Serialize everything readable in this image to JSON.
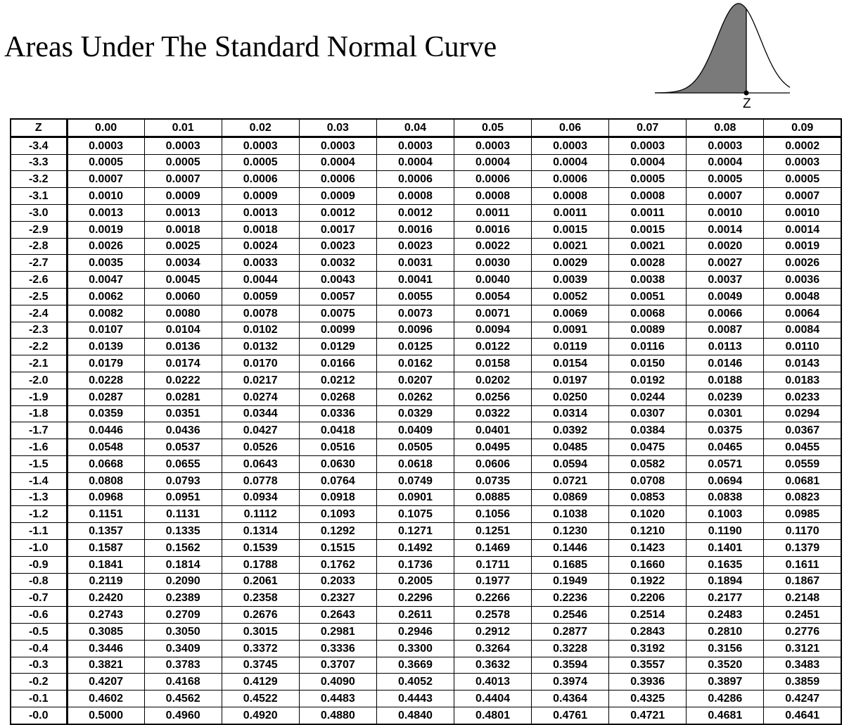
{
  "title": "Areas Under The Standard Normal Curve",
  "figure": {
    "z_label": "Z",
    "shade_color": "#7a7a7a"
  },
  "table": {
    "headers": [
      "Z",
      "0.00",
      "0.01",
      "0.02",
      "0.03",
      "0.04",
      "0.05",
      "0.06",
      "0.07",
      "0.08",
      "0.09"
    ],
    "rows": [
      [
        "-3.4",
        "0.0003",
        "0.0003",
        "0.0003",
        "0.0003",
        "0.0003",
        "0.0003",
        "0.0003",
        "0.0003",
        "0.0003",
        "0.0002"
      ],
      [
        "-3.3",
        "0.0005",
        "0.0005",
        "0.0005",
        "0.0004",
        "0.0004",
        "0.0004",
        "0.0004",
        "0.0004",
        "0.0004",
        "0.0003"
      ],
      [
        "-3.2",
        "0.0007",
        "0.0007",
        "0.0006",
        "0.0006",
        "0.0006",
        "0.0006",
        "0.0006",
        "0.0005",
        "0.0005",
        "0.0005"
      ],
      [
        "-3.1",
        "0.0010",
        "0.0009",
        "0.0009",
        "0.0009",
        "0.0008",
        "0.0008",
        "0.0008",
        "0.0008",
        "0.0007",
        "0.0007"
      ],
      [
        "-3.0",
        "0.0013",
        "0.0013",
        "0.0013",
        "0.0012",
        "0.0012",
        "0.0011",
        "0.0011",
        "0.0011",
        "0.0010",
        "0.0010"
      ],
      [
        "-2.9",
        "0.0019",
        "0.0018",
        "0.0018",
        "0.0017",
        "0.0016",
        "0.0016",
        "0.0015",
        "0.0015",
        "0.0014",
        "0.0014"
      ],
      [
        "-2.8",
        "0.0026",
        "0.0025",
        "0.0024",
        "0.0023",
        "0.0023",
        "0.0022",
        "0.0021",
        "0.0021",
        "0.0020",
        "0.0019"
      ],
      [
        "-2.7",
        "0.0035",
        "0.0034",
        "0.0033",
        "0.0032",
        "0.0031",
        "0.0030",
        "0.0029",
        "0.0028",
        "0.0027",
        "0.0026"
      ],
      [
        "-2.6",
        "0.0047",
        "0.0045",
        "0.0044",
        "0.0043",
        "0.0041",
        "0.0040",
        "0.0039",
        "0.0038",
        "0.0037",
        "0.0036"
      ],
      [
        "-2.5",
        "0.0062",
        "0.0060",
        "0.0059",
        "0.0057",
        "0.0055",
        "0.0054",
        "0.0052",
        "0.0051",
        "0.0049",
        "0.0048"
      ],
      [
        "-2.4",
        "0.0082",
        "0.0080",
        "0.0078",
        "0.0075",
        "0.0073",
        "0.0071",
        "0.0069",
        "0.0068",
        "0.0066",
        "0.0064"
      ],
      [
        "-2.3",
        "0.0107",
        "0.0104",
        "0.0102",
        "0.0099",
        "0.0096",
        "0.0094",
        "0.0091",
        "0.0089",
        "0.0087",
        "0.0084"
      ],
      [
        "-2.2",
        "0.0139",
        "0.0136",
        "0.0132",
        "0.0129",
        "0.0125",
        "0.0122",
        "0.0119",
        "0.0116",
        "0.0113",
        "0.0110"
      ],
      [
        "-2.1",
        "0.0179",
        "0.0174",
        "0.0170",
        "0.0166",
        "0.0162",
        "0.0158",
        "0.0154",
        "0.0150",
        "0.0146",
        "0.0143"
      ],
      [
        "-2.0",
        "0.0228",
        "0.0222",
        "0.0217",
        "0.0212",
        "0.0207",
        "0.0202",
        "0.0197",
        "0.0192",
        "0.0188",
        "0.0183"
      ],
      [
        "-1.9",
        "0.0287",
        "0.0281",
        "0.0274",
        "0.0268",
        "0.0262",
        "0.0256",
        "0.0250",
        "0.0244",
        "0.0239",
        "0.0233"
      ],
      [
        "-1.8",
        "0.0359",
        "0.0351",
        "0.0344",
        "0.0336",
        "0.0329",
        "0.0322",
        "0.0314",
        "0.0307",
        "0.0301",
        "0.0294"
      ],
      [
        "-1.7",
        "0.0446",
        "0.0436",
        "0.0427",
        "0.0418",
        "0.0409",
        "0.0401",
        "0.0392",
        "0.0384",
        "0.0375",
        "0.0367"
      ],
      [
        "-1.6",
        "0.0548",
        "0.0537",
        "0.0526",
        "0.0516",
        "0.0505",
        "0.0495",
        "0.0485",
        "0.0475",
        "0.0465",
        "0.0455"
      ],
      [
        "-1.5",
        "0.0668",
        "0.0655",
        "0.0643",
        "0.0630",
        "0.0618",
        "0.0606",
        "0.0594",
        "0.0582",
        "0.0571",
        "0.0559"
      ],
      [
        "-1.4",
        "0.0808",
        "0.0793",
        "0.0778",
        "0.0764",
        "0.0749",
        "0.0735",
        "0.0721",
        "0.0708",
        "0.0694",
        "0.0681"
      ],
      [
        "-1.3",
        "0.0968",
        "0.0951",
        "0.0934",
        "0.0918",
        "0.0901",
        "0.0885",
        "0.0869",
        "0.0853",
        "0.0838",
        "0.0823"
      ],
      [
        "-1.2",
        "0.1151",
        "0.1131",
        "0.1112",
        "0.1093",
        "0.1075",
        "0.1056",
        "0.1038",
        "0.1020",
        "0.1003",
        "0.0985"
      ],
      [
        "-1.1",
        "0.1357",
        "0.1335",
        "0.1314",
        "0.1292",
        "0.1271",
        "0.1251",
        "0.1230",
        "0.1210",
        "0.1190",
        "0.1170"
      ],
      [
        "-1.0",
        "0.1587",
        "0.1562",
        "0.1539",
        "0.1515",
        "0.1492",
        "0.1469",
        "0.1446",
        "0.1423",
        "0.1401",
        "0.1379"
      ],
      [
        "-0.9",
        "0.1841",
        "0.1814",
        "0.1788",
        "0.1762",
        "0.1736",
        "0.1711",
        "0.1685",
        "0.1660",
        "0.1635",
        "0.1611"
      ],
      [
        "-0.8",
        "0.2119",
        "0.2090",
        "0.2061",
        "0.2033",
        "0.2005",
        "0.1977",
        "0.1949",
        "0.1922",
        "0.1894",
        "0.1867"
      ],
      [
        "-0.7",
        "0.2420",
        "0.2389",
        "0.2358",
        "0.2327",
        "0.2296",
        "0.2266",
        "0.2236",
        "0.2206",
        "0.2177",
        "0.2148"
      ],
      [
        "-0.6",
        "0.2743",
        "0.2709",
        "0.2676",
        "0.2643",
        "0.2611",
        "0.2578",
        "0.2546",
        "0.2514",
        "0.2483",
        "0.2451"
      ],
      [
        "-0.5",
        "0.3085",
        "0.3050",
        "0.3015",
        "0.2981",
        "0.2946",
        "0.2912",
        "0.2877",
        "0.2843",
        "0.2810",
        "0.2776"
      ],
      [
        "-0.4",
        "0.3446",
        "0.3409",
        "0.3372",
        "0.3336",
        "0.3300",
        "0.3264",
        "0.3228",
        "0.3192",
        "0.3156",
        "0.3121"
      ],
      [
        "-0.3",
        "0.3821",
        "0.3783",
        "0.3745",
        "0.3707",
        "0.3669",
        "0.3632",
        "0.3594",
        "0.3557",
        "0.3520",
        "0.3483"
      ],
      [
        "-0.2",
        "0.4207",
        "0.4168",
        "0.4129",
        "0.4090",
        "0.4052",
        "0.4013",
        "0.3974",
        "0.3936",
        "0.3897",
        "0.3859"
      ],
      [
        "-0.1",
        "0.4602",
        "0.4562",
        "0.4522",
        "0.4483",
        "0.4443",
        "0.4404",
        "0.4364",
        "0.4325",
        "0.4286",
        "0.4247"
      ],
      [
        "-0.0",
        "0.5000",
        "0.4960",
        "0.4920",
        "0.4880",
        "0.4840",
        "0.4801",
        "0.4761",
        "0.4721",
        "0.4681",
        "0.4641"
      ]
    ]
  }
}
